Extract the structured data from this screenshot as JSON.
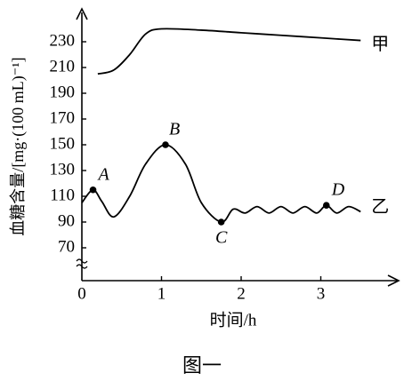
{
  "chart_data": {
    "type": "line",
    "ylabel": "血糖含量/[mg·(100 mL)⁻¹]",
    "xlabel": "时间/h",
    "caption": "图一",
    "xlim": [
      0,
      3.9
    ],
    "xticks": [
      0,
      1,
      2,
      3
    ],
    "ylim": [
      60,
      250
    ],
    "yticks": [
      70,
      90,
      110,
      130,
      150,
      170,
      190,
      210,
      230
    ],
    "series": [
      {
        "name": "甲",
        "color": "#000000",
        "x": [
          0.2,
          0.4,
          0.6,
          0.8,
          1.0,
          1.5,
          2.0,
          2.5,
          3.0,
          3.5
        ],
        "values": [
          205,
          208,
          220,
          236,
          240,
          239,
          237,
          235,
          233,
          231
        ]
      },
      {
        "name": "乙",
        "color": "#000000",
        "x": [
          0,
          0.14,
          0.25,
          0.4,
          0.6,
          0.8,
          1.05,
          1.3,
          1.5,
          1.75,
          1.9,
          2.05,
          2.2,
          2.35,
          2.5,
          2.65,
          2.8,
          2.95,
          3.07,
          3.2,
          3.35,
          3.5
        ],
        "values": [
          105,
          115,
          106,
          94,
          110,
          135,
          150,
          135,
          105,
          90,
          100,
          97,
          102,
          97,
          102,
          97,
          102,
          97,
          103,
          97,
          102,
          98
        ],
        "point_labels": [
          null,
          "A",
          null,
          null,
          null,
          null,
          "B",
          null,
          null,
          "C",
          null,
          null,
          null,
          null,
          null,
          null,
          null,
          null,
          "D",
          null,
          null,
          null
        ]
      }
    ]
  }
}
